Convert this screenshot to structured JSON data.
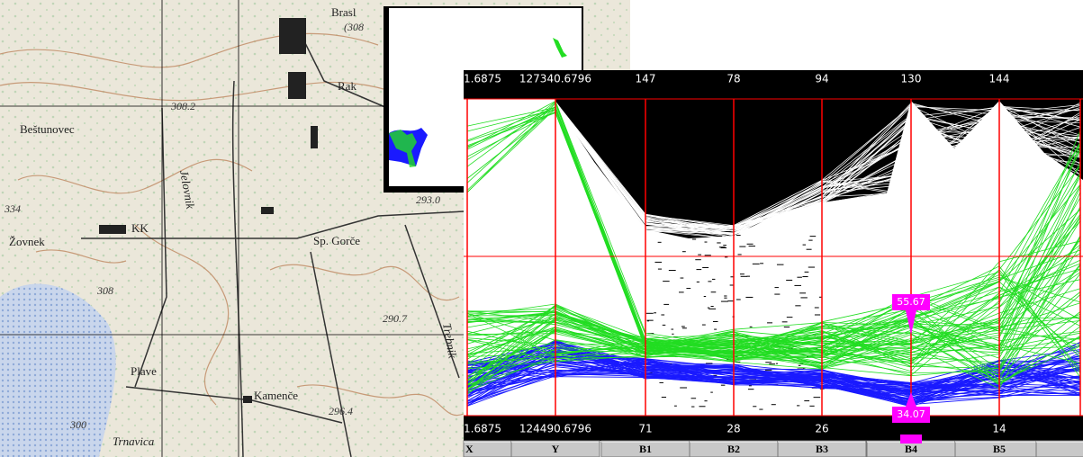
{
  "map": {
    "labels": [
      "Brasl",
      "(308",
      "Rak",
      "308.2",
      "Beštunovec",
      "334",
      "Žovnek",
      "KK",
      "Sp. Gorče",
      "293.0",
      "308",
      "290.7",
      "Plave",
      "Kamenče",
      "296.4",
      "300",
      "Trnavica",
      "Jelovnik",
      "Trebnik"
    ]
  },
  "parallel_plot": {
    "axes": [
      {
        "name": "X",
        "max": "1.6875",
        "min": "1.6875"
      },
      {
        "name": "Y",
        "max": "127340.6796",
        "min": "124490.6796"
      },
      {
        "name": "B1",
        "max": "147",
        "min": "71"
      },
      {
        "name": "B2",
        "max": "78",
        "min": "28"
      },
      {
        "name": "B3",
        "max": "94",
        "min": "26"
      },
      {
        "name": "B4",
        "max": "130",
        "min": "34.07"
      },
      {
        "name": "B5",
        "max": "144",
        "min": "14"
      }
    ],
    "markers": [
      "55.67",
      "34.07"
    ]
  }
}
